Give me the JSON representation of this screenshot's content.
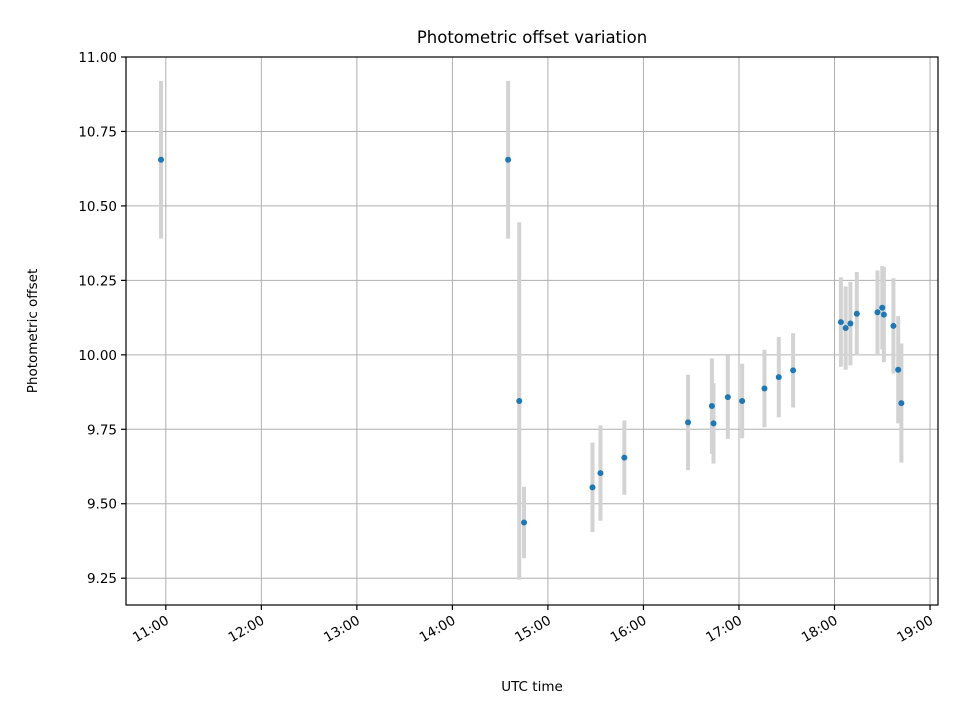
{
  "chart_data": {
    "type": "scatter",
    "title": "Photometric offset variation",
    "xlabel": "UTC time",
    "ylabel": "Photometric offset",
    "x_ticks": [
      "11:00",
      "12:00",
      "13:00",
      "14:00",
      "15:00",
      "16:00",
      "17:00",
      "18:00",
      "19:00"
    ],
    "y_ticks": [
      "9.25",
      "9.50",
      "9.75",
      "10.00",
      "10.25",
      "10.50",
      "10.75",
      "11.00"
    ],
    "xlim": [
      "10:35",
      "19:05"
    ],
    "ylim": [
      9.16,
      11.0
    ],
    "grid": true,
    "colors": {
      "points": "#1f77b4",
      "errorbars": "#d3d3d3",
      "grid": "#b0b0b0"
    },
    "series": [
      {
        "points": [
          {
            "x": "10:57",
            "y": 10.655,
            "err": 0.265
          },
          {
            "x": "14:35",
            "y": 10.655,
            "err": 0.265
          },
          {
            "x": "14:42",
            "y": 9.845,
            "err": 0.6
          },
          {
            "x": "14:45",
            "y": 9.437,
            "err": 0.12
          },
          {
            "x": "15:28",
            "y": 9.555,
            "err": 0.15
          },
          {
            "x": "15:33",
            "y": 9.603,
            "err": 0.16
          },
          {
            "x": "15:48",
            "y": 9.655,
            "err": 0.125
          },
          {
            "x": "16:28",
            "y": 9.773,
            "err": 0.16
          },
          {
            "x": "16:43",
            "y": 9.828,
            "err": 0.16
          },
          {
            "x": "16:44",
            "y": 9.77,
            "err": 0.135
          },
          {
            "x": "16:53",
            "y": 9.858,
            "err": 0.14
          },
          {
            "x": "17:02",
            "y": 9.845,
            "err": 0.125
          },
          {
            "x": "17:16",
            "y": 9.887,
            "err": 0.13
          },
          {
            "x": "17:25",
            "y": 9.925,
            "err": 0.135
          },
          {
            "x": "17:34",
            "y": 9.948,
            "err": 0.125
          },
          {
            "x": "18:04",
            "y": 10.11,
            "err": 0.15
          },
          {
            "x": "18:07",
            "y": 10.09,
            "err": 0.14
          },
          {
            "x": "18:10",
            "y": 10.105,
            "err": 0.14
          },
          {
            "x": "18:14",
            "y": 10.138,
            "err": 0.14
          },
          {
            "x": "18:27",
            "y": 10.143,
            "err": 0.14
          },
          {
            "x": "18:30",
            "y": 10.158,
            "err": 0.14
          },
          {
            "x": "18:31",
            "y": 10.135,
            "err": 0.16
          },
          {
            "x": "18:37",
            "y": 10.097,
            "err": 0.16
          },
          {
            "x": "18:40",
            "y": 9.95,
            "err": 0.18
          },
          {
            "x": "18:42",
            "y": 9.838,
            "err": 0.2
          }
        ]
      }
    ]
  }
}
